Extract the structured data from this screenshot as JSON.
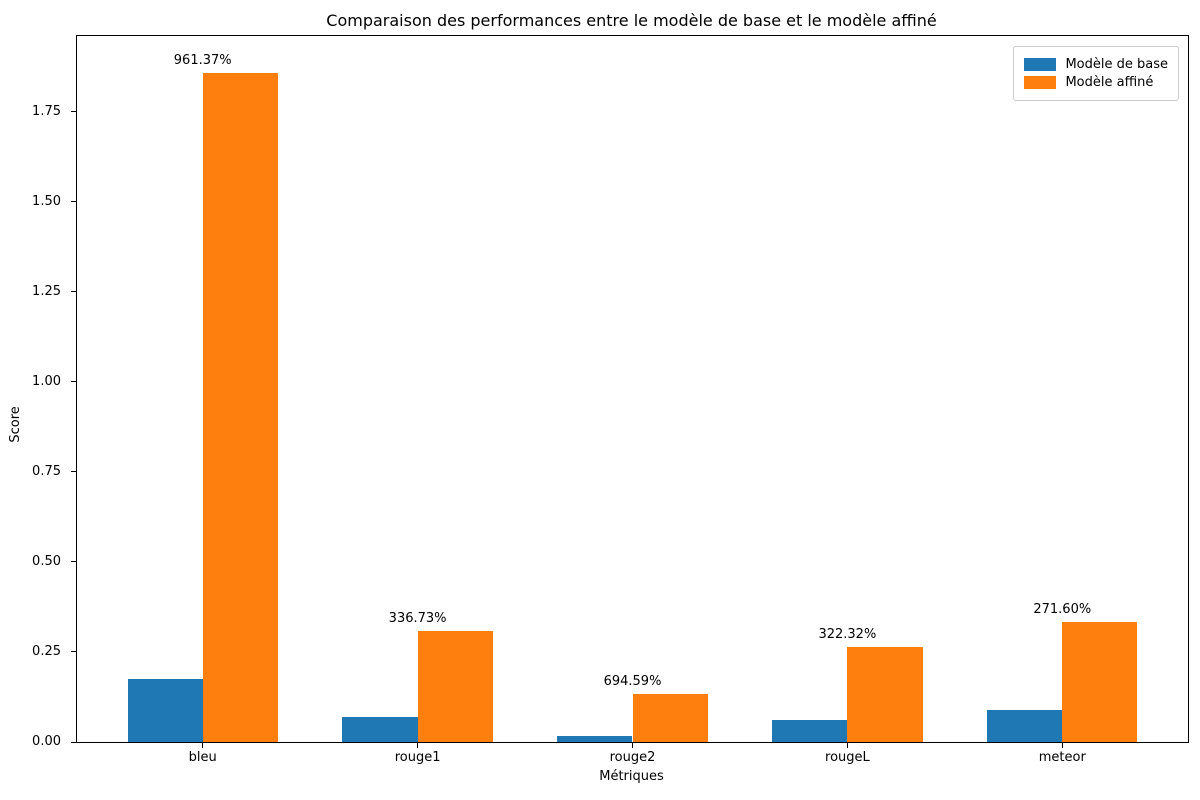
{
  "chart_data": {
    "type": "bar",
    "title": "Comparaison des performances entre le modèle de base et le modèle affiné",
    "xlabel": "Métriques",
    "ylabel": "Score",
    "categories": [
      "bleu",
      "rouge1",
      "rouge2",
      "rougeL",
      "meteor"
    ],
    "series": [
      {
        "name": "Modèle de base",
        "color": "#1f77b4",
        "values": [
          0.175,
          0.0705,
          0.0167,
          0.0625,
          0.0897
        ]
      },
      {
        "name": "Modèle affiné",
        "color": "#ff7f0e",
        "values": [
          1.857,
          0.308,
          0.133,
          0.264,
          0.333
        ]
      }
    ],
    "bar_labels": [
      "961.37%",
      "336.73%",
      "694.59%",
      "322.32%",
      "271.60%"
    ],
    "ytick_labels": [
      "0.00",
      "0.25",
      "0.50",
      "0.75",
      "1.00",
      "1.25",
      "1.50",
      "1.75"
    ],
    "yticks": [
      0,
      0.25,
      0.5,
      0.75,
      1.0,
      1.25,
      1.5,
      1.75
    ],
    "ylim": [
      0,
      1.96
    ],
    "xlim": [
      -0.585,
      4.585
    ],
    "bar_width": 0.35,
    "legend_position": "upper right",
    "grid": false
  }
}
